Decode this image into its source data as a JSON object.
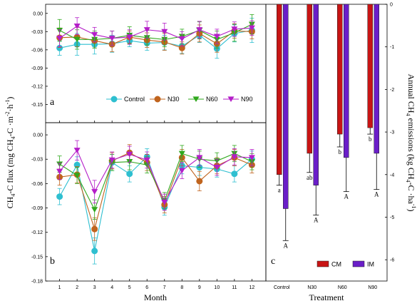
{
  "colors": {
    "Control": "#2ebfd0",
    "N30": "#c0641e",
    "N60": "#2fa81c",
    "N90": "#b41ec8",
    "CM": "#c81414",
    "IM": "#6a1ec8"
  },
  "chart_data": [
    {
      "type": "line",
      "panel_label": "a",
      "x": [
        1,
        2,
        3,
        4,
        5,
        6,
        7,
        8,
        9,
        10,
        11,
        12
      ],
      "xlim": [
        0.2,
        12.8
      ],
      "ylim": [
        -0.18,
        0.015
      ],
      "yticks": [
        "0.00",
        "-0.03",
        "-0.06",
        "-0.09",
        "-0.12",
        "-0.15"
      ],
      "legend": "inside-lower",
      "series": [
        {
          "name": "Control",
          "marker": "circle",
          "values": [
            -0.057,
            -0.051,
            -0.051,
            -0.05,
            -0.045,
            -0.049,
            -0.048,
            -0.054,
            -0.036,
            -0.058,
            -0.033,
            -0.028
          ],
          "errors": [
            0.012,
            0.018,
            0.016,
            0.014,
            0.01,
            0.012,
            0.012,
            0.012,
            0.012,
            0.016,
            0.014,
            0.02
          ]
        },
        {
          "name": "N30",
          "marker": "circle",
          "values": [
            -0.04,
            -0.039,
            -0.045,
            -0.051,
            -0.039,
            -0.044,
            -0.047,
            -0.057,
            -0.033,
            -0.05,
            -0.029,
            -0.03
          ],
          "errors": [
            0.016,
            0.016,
            0.012,
            0.012,
            0.01,
            0.012,
            0.014,
            0.01,
            0.014,
            0.014,
            0.012,
            0.012
          ]
        },
        {
          "name": "N60",
          "marker": "triangle-down",
          "values": [
            -0.028,
            -0.043,
            -0.043,
            -0.041,
            -0.036,
            -0.04,
            -0.043,
            -0.038,
            -0.028,
            -0.043,
            -0.032,
            -0.018
          ],
          "errors": [
            0.018,
            0.016,
            0.014,
            0.012,
            0.014,
            0.012,
            0.012,
            0.012,
            0.014,
            0.014,
            0.014,
            0.016
          ]
        },
        {
          "name": "N90",
          "marker": "triangle-down",
          "values": [
            -0.041,
            -0.021,
            -0.035,
            -0.041,
            -0.039,
            -0.027,
            -0.03,
            -0.042,
            -0.027,
            -0.038,
            -0.026,
            -0.024
          ],
          "errors": [
            0.014,
            0.014,
            0.012,
            0.012,
            0.012,
            0.014,
            0.014,
            0.012,
            0.014,
            0.012,
            0.012,
            0.012
          ]
        }
      ]
    },
    {
      "type": "line",
      "panel_label": "b",
      "x": [
        1,
        2,
        3,
        4,
        5,
        6,
        7,
        8,
        9,
        10,
        11,
        12
      ],
      "xlim": [
        0.2,
        12.8
      ],
      "ylim": [
        -0.18,
        0.015
      ],
      "yticks": [
        "0.00",
        "-0.03",
        "-0.06",
        "-0.09",
        "-0.12",
        "-0.15",
        "-0.18"
      ],
      "xticks": [
        "1",
        "2",
        "3",
        "4",
        "5",
        "6",
        "7",
        "8",
        "9",
        "10",
        "11",
        "12"
      ],
      "xlabel": "Month",
      "series": [
        {
          "name": "Control",
          "values": [
            -0.076,
            -0.037,
            -0.143,
            -0.034,
            -0.048,
            -0.027,
            -0.089,
            -0.038,
            -0.04,
            -0.042,
            -0.048,
            -0.03
          ],
          "errors": [
            0.01,
            0.01,
            0.016,
            0.01,
            0.01,
            0.01,
            0.01,
            0.01,
            0.01,
            0.01,
            0.01,
            0.01
          ]
        },
        {
          "name": "N30",
          "values": [
            -0.052,
            -0.049,
            -0.116,
            -0.032,
            -0.022,
            -0.034,
            -0.086,
            -0.028,
            -0.057,
            -0.038,
            -0.028,
            -0.037
          ],
          "errors": [
            0.01,
            0.01,
            0.014,
            0.01,
            0.01,
            0.01,
            0.01,
            0.01,
            0.012,
            0.01,
            0.01,
            0.01
          ]
        },
        {
          "name": "N60",
          "values": [
            -0.036,
            -0.05,
            -0.092,
            -0.034,
            -0.033,
            -0.037,
            -0.081,
            -0.023,
            -0.03,
            -0.032,
            -0.023,
            -0.033
          ],
          "errors": [
            0.01,
            0.01,
            0.012,
            0.01,
            0.01,
            0.01,
            0.01,
            0.01,
            0.01,
            0.01,
            0.01,
            0.01
          ]
        },
        {
          "name": "N90",
          "values": [
            -0.045,
            -0.019,
            -0.07,
            -0.031,
            -0.024,
            -0.031,
            -0.083,
            -0.044,
            -0.028,
            -0.04,
            -0.027,
            -0.028
          ],
          "errors": [
            0.01,
            0.012,
            0.014,
            0.01,
            0.01,
            0.01,
            0.01,
            0.01,
            0.01,
            0.01,
            0.01,
            0.01
          ]
        }
      ]
    },
    {
      "type": "bar",
      "panel_label": "c",
      "categories": [
        "Control",
        "N30",
        "N60",
        "N90"
      ],
      "xlabel": "Treatment",
      "ylabel": "Annual CH4 emissions (kg CH4-C·ha⁻¹)",
      "ylim": [
        -6.5,
        0
      ],
      "yticks": [
        "0",
        "-1",
        "-2",
        "-3",
        "-4",
        "-5",
        "-6"
      ],
      "legend": "bottom-right",
      "series": [
        {
          "name": "CM",
          "values": [
            -4.0,
            -3.5,
            -3.05,
            -2.9
          ],
          "errors": [
            0.25,
            0.45,
            0.3,
            0.15
          ],
          "letters": [
            "a",
            "ab",
            "b",
            "b"
          ]
        },
        {
          "name": "IM",
          "values": [
            -4.8,
            -4.25,
            -3.6,
            -3.5
          ],
          "errors": [
            0.75,
            0.7,
            0.8,
            0.85
          ],
          "letters": [
            "A",
            "A",
            "A",
            "A"
          ]
        }
      ]
    }
  ],
  "y_axis_left": {
    "pre": "CH",
    "sub1": "4",
    "mid": "-C flux (mg CH",
    "sub2": "4",
    "post": "-C ·m",
    "sup1": "-2",
    "post2": "·h",
    "sup2": "-1",
    "close": ")"
  },
  "y_axis_right": {
    "pre": "Annual CH",
    "sub1": "4",
    "mid": " emissions (kg CH",
    "sub2": "4",
    "post": "-C ·ha",
    "sup1": "-1",
    "close": ")"
  }
}
